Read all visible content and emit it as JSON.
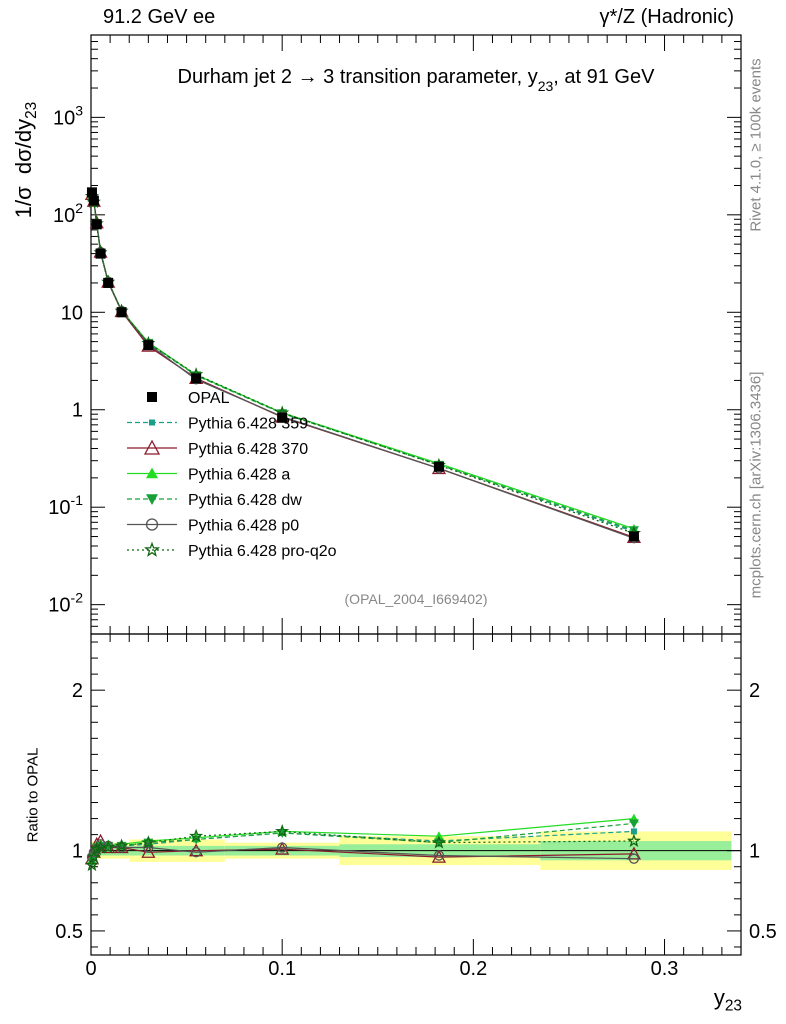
{
  "header": {
    "left": "91.2 GeV ee",
    "right": "γ*/Z (Hadronic)"
  },
  "side_labels": {
    "rivet": "Rivet 4.1.0, ≥ 100k events",
    "mcplots": "mcplots.cern.ch [arXiv:1306.3436]"
  },
  "chart_data": {
    "type": "line",
    "title": "Durham jet 2 → 3 transition parameter, y23, at 91 GeV",
    "xlabel": "y23",
    "ylabel": "1/σ dσ/dy23",
    "ylabel_ratio": "Ratio to OPAL",
    "annotation": "(OPAL_2004_I669402)",
    "xlim": [
      0,
      0.34
    ],
    "ylim": [
      0.005,
      7000
    ],
    "ratio_ylim": [
      0.35,
      2.35
    ],
    "yscale": "log",
    "legend_position": "middle-left",
    "x_ticks": [
      "0",
      "0.1",
      "0.2",
      "0.3"
    ],
    "y_ticks": [
      "10^-2",
      "10^-1",
      "1",
      "10",
      "10^2",
      "10^3"
    ],
    "ratio_ticks": [
      "0.5",
      "1",
      "2"
    ],
    "x": [
      0.0005,
      0.0015,
      0.003,
      0.005,
      0.009,
      0.016,
      0.03,
      0.055,
      0.1,
      0.182,
      0.284
    ],
    "bin_edges": [
      0,
      0.001,
      0.002,
      0.004,
      0.006,
      0.012,
      0.02,
      0.04,
      0.07,
      0.13,
      0.235,
      0.335
    ],
    "ratio_band_stat": [
      0.04,
      0.04,
      0.03,
      0.03,
      0.03,
      0.03,
      0.03,
      0.03,
      0.03,
      0.04,
      0.06
    ],
    "ratio_band_total": [
      0.06,
      0.06,
      0.05,
      0.05,
      0.05,
      0.05,
      0.07,
      0.07,
      0.05,
      0.09,
      0.12
    ],
    "series": [
      {
        "name": "OPAL",
        "color": "#000000",
        "marker": "square",
        "dash": "",
        "values": [
          170,
          140,
          80,
          40,
          20,
          10,
          4.6,
          2.1,
          0.83,
          0.26,
          0.05
        ],
        "ratio": [
          1,
          1,
          1,
          1,
          1,
          1,
          1,
          1,
          1,
          1,
          1
        ]
      },
      {
        "name": "Pythia 6.428 359",
        "color": "#1aa08a",
        "marker": "smallsquare",
        "dash": "5,3",
        "values": [
          158,
          136,
          82,
          41,
          20.6,
          10.3,
          4.8,
          2.25,
          0.92,
          0.275,
          0.056
        ],
        "ratio": [
          0.93,
          0.97,
          1.02,
          1.03,
          1.03,
          1.03,
          1.04,
          1.07,
          1.11,
          1.06,
          1.12
        ]
      },
      {
        "name": "Pythia 6.428 370",
        "color": "#8b1a2b",
        "marker": "triangle-open",
        "dash": "",
        "values": [
          162,
          138,
          83,
          41.5,
          20.4,
          10.2,
          4.5,
          2.1,
          0.84,
          0.25,
          0.049
        ],
        "ratio": [
          0.95,
          0.99,
          1.04,
          1.06,
          1.02,
          1.02,
          0.99,
          1.0,
          1.01,
          0.96,
          0.98
        ]
      },
      {
        "name": "Pythia 6.428 a",
        "color": "#22dd22",
        "marker": "triangle",
        "dash": "",
        "values": [
          160,
          137,
          82,
          41,
          20.8,
          10.4,
          4.9,
          2.28,
          0.93,
          0.28,
          0.06
        ],
        "ratio": [
          0.94,
          0.98,
          1.03,
          1.04,
          1.04,
          1.04,
          1.06,
          1.08,
          1.12,
          1.09,
          1.2
        ]
      },
      {
        "name": "Pythia 6.428 dw",
        "color": "#18a038",
        "marker": "triangle-down",
        "dash": "5,3",
        "values": [
          158,
          136,
          82,
          41,
          20.5,
          10.3,
          4.85,
          2.25,
          0.92,
          0.272,
          0.058
        ],
        "ratio": [
          0.93,
          0.97,
          1.02,
          1.03,
          1.03,
          1.03,
          1.05,
          1.07,
          1.11,
          1.05,
          1.17
        ]
      },
      {
        "name": "Pythia 6.428 p0",
        "color": "#555555",
        "marker": "circle-open",
        "dash": "",
        "values": [
          163,
          139,
          81,
          41.5,
          20.6,
          10.3,
          4.7,
          2.05,
          0.85,
          0.25,
          0.048
        ],
        "ratio": [
          0.96,
          0.99,
          1.01,
          1.04,
          1.03,
          1.02,
          1.02,
          0.99,
          1.02,
          0.97,
          0.95
        ]
      },
      {
        "name": "Pythia 6.428 pro-q2o",
        "color": "#116611",
        "marker": "star-open",
        "dash": "2,3",
        "values": [
          155,
          135,
          81,
          41,
          20.4,
          10.3,
          4.8,
          2.3,
          0.93,
          0.27,
          0.054
        ],
        "ratio": [
          0.91,
          0.96,
          1.01,
          1.02,
          1.02,
          1.03,
          1.05,
          1.09,
          1.12,
          1.05,
          1.06
        ]
      }
    ]
  }
}
